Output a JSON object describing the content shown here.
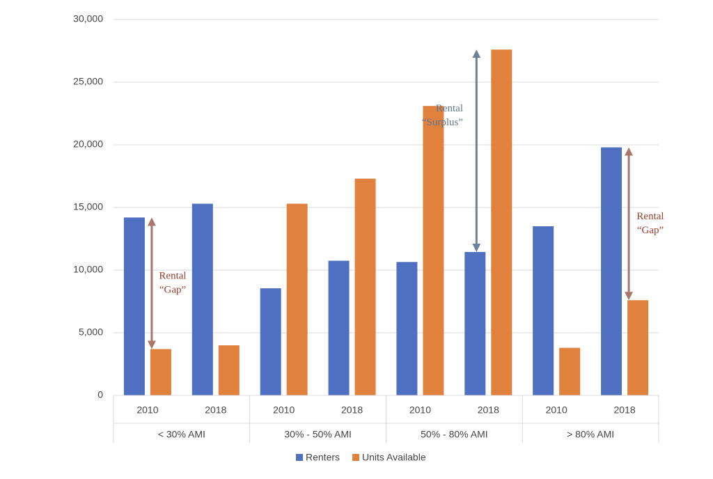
{
  "chart_data": {
    "type": "bar",
    "categories": [
      "2010",
      "2018",
      "2010",
      "2018",
      "2010",
      "2018",
      "2010",
      "2018"
    ],
    "groups": [
      "< 30% AMI",
      "30% - 50% AMI",
      "50% - 80% AMI",
      "> 80% AMI"
    ],
    "series": [
      {
        "name": "Renters",
        "color": "#4f70c0",
        "values": [
          14200,
          15300,
          8550,
          10750,
          10650,
          11450,
          13500,
          19800
        ]
      },
      {
        "name": "Units Available",
        "color": "#e0823e",
        "values": [
          3700,
          4000,
          15300,
          17300,
          23100,
          27600,
          3800,
          7600
        ]
      }
    ],
    "ylim": [
      0,
      30000
    ],
    "yticks": [
      0,
      {
        "value": 5000,
        "label": "5,000"
      },
      {
        "value": 10000,
        "label": "10,000"
      },
      {
        "value": 15000,
        "label": "15,000"
      },
      {
        "value": 20000,
        "label": "20,000"
      },
      {
        "value": 25000,
        "label": "25,000"
      },
      {
        "value": 30000,
        "label": "30,000"
      }
    ],
    "grid": true,
    "legend": "bottom",
    "annotations": [
      {
        "lines": [
          "Rental",
          "“Gap”"
        ],
        "color": "#9b3f30",
        "arrow_color": "#a8776b"
      },
      {
        "lines": [
          "Rental",
          "“Surplus”"
        ],
        "color": "#5f7893",
        "arrow_color": "#6c8299"
      },
      {
        "lines": [
          "Rental",
          "“Gap”"
        ],
        "color": "#9b3f30",
        "arrow_color": "#a8776b"
      }
    ]
  }
}
